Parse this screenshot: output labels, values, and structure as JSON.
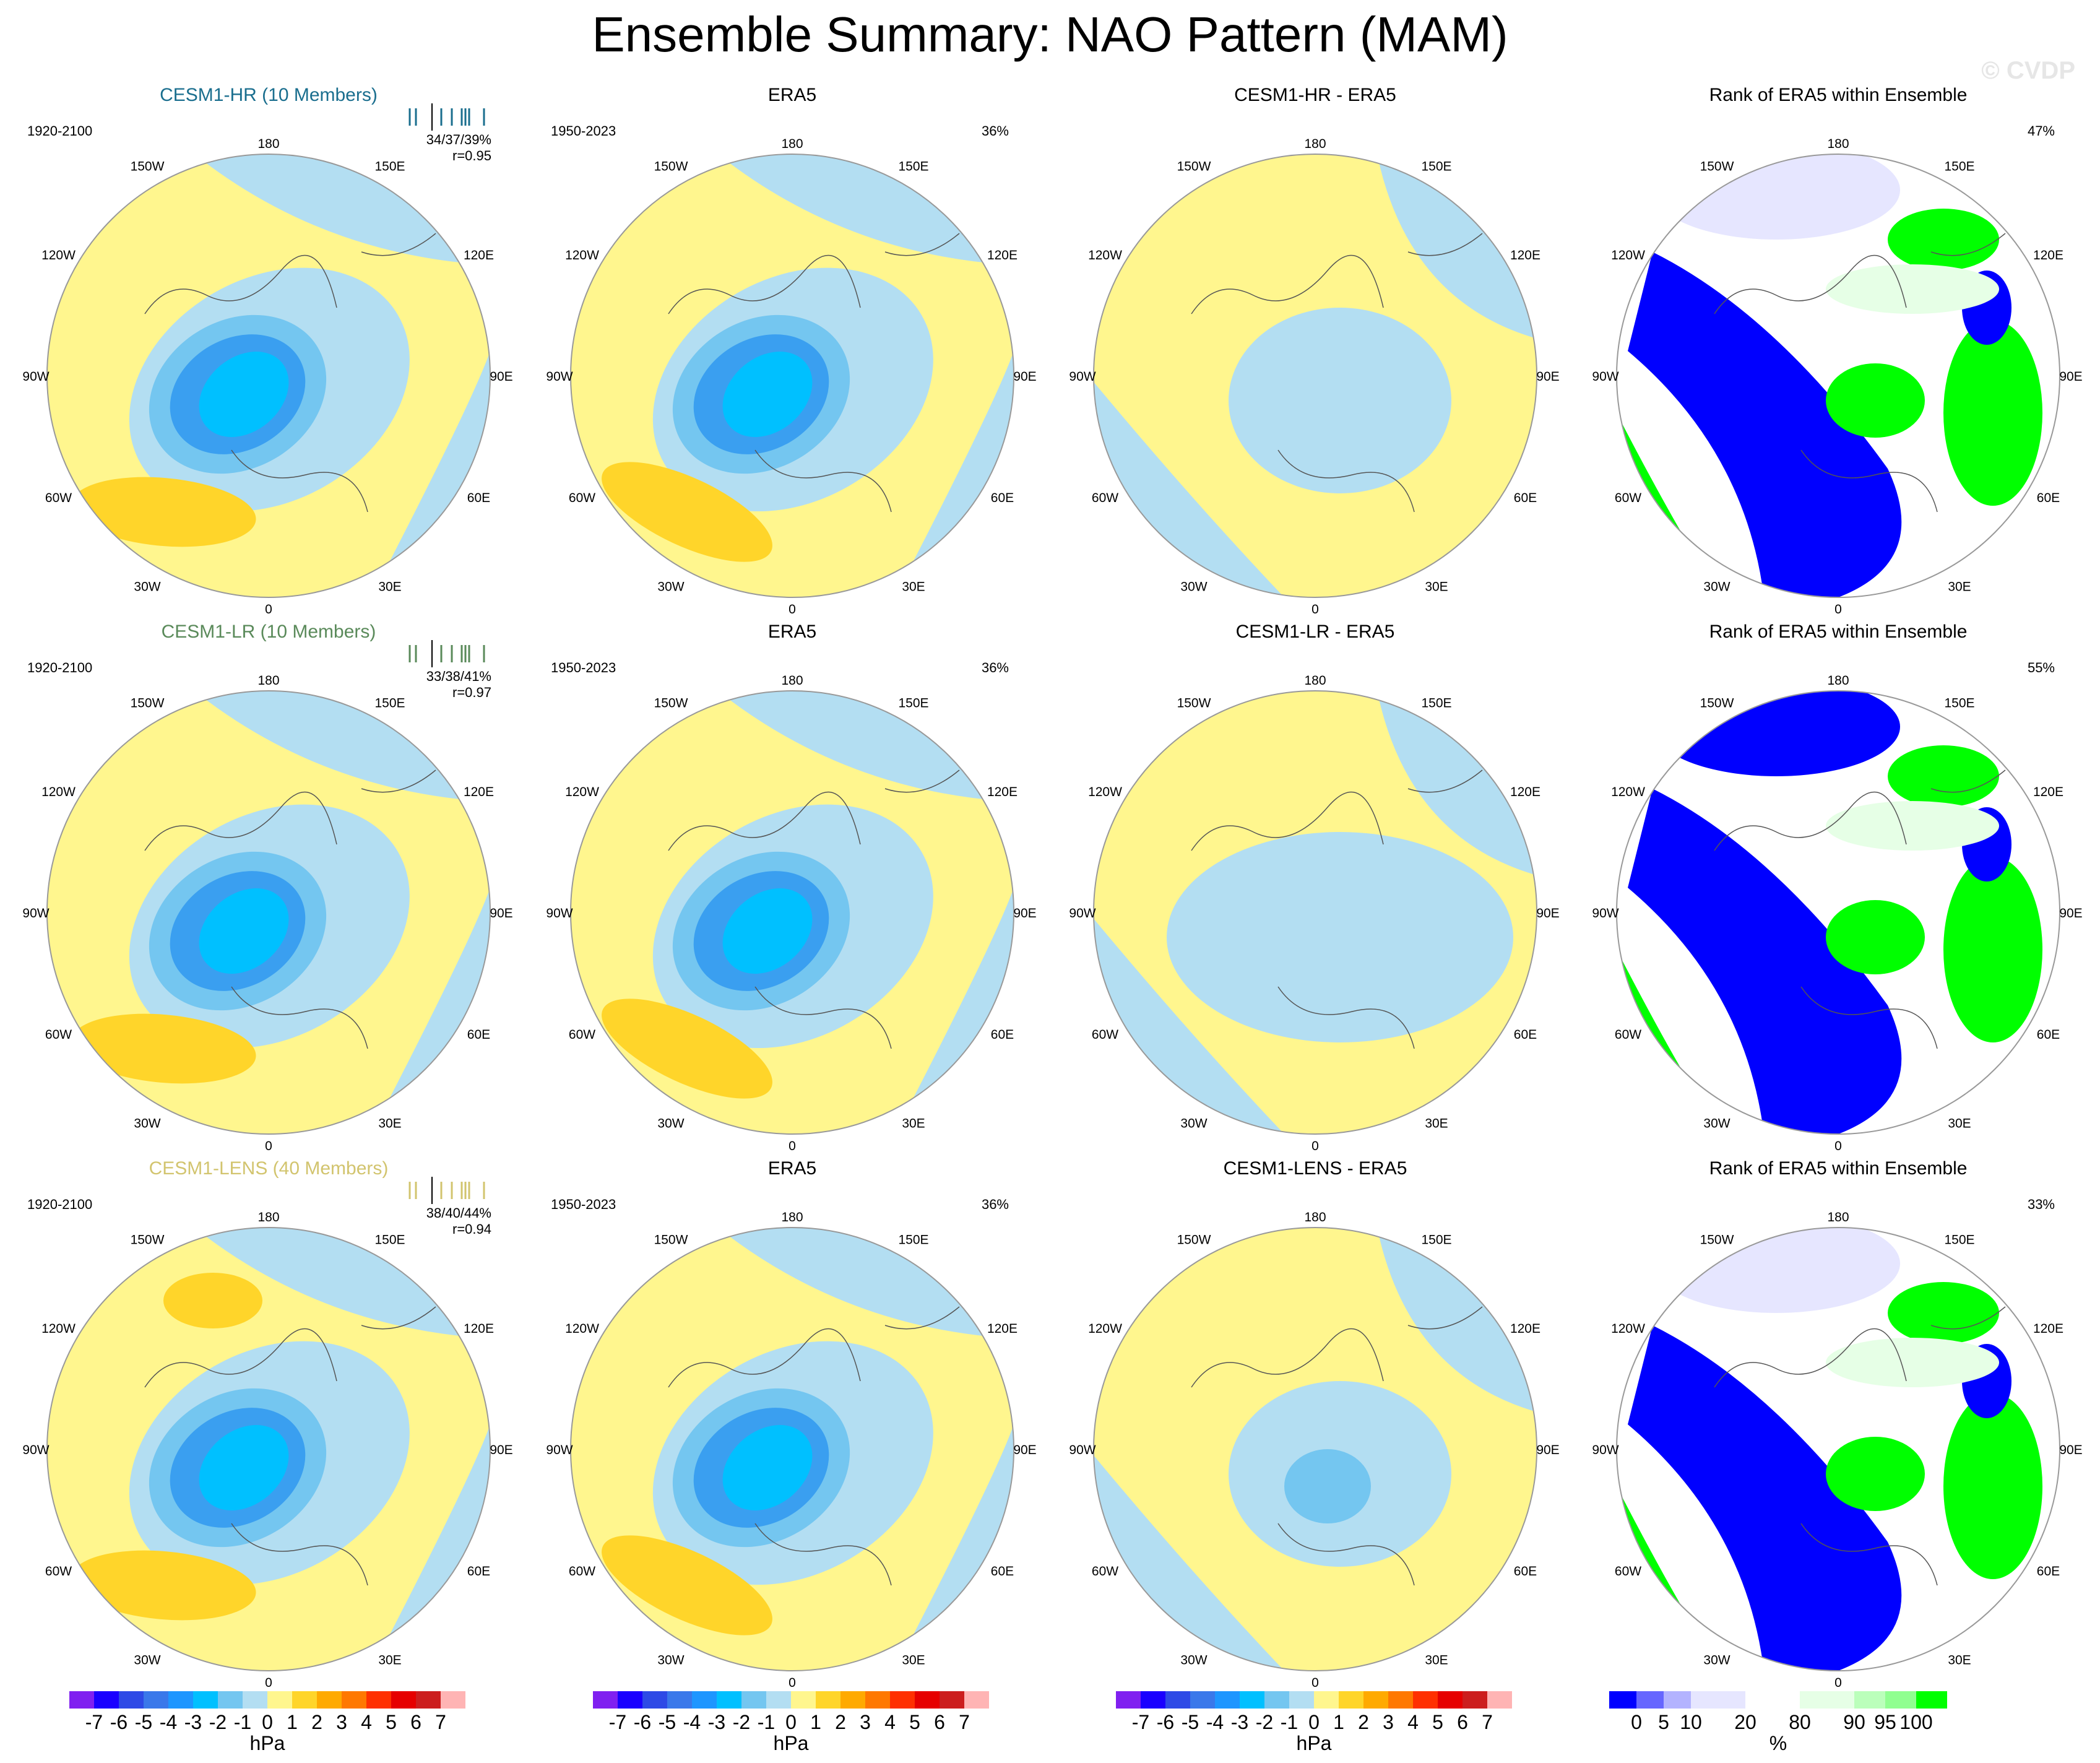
{
  "title": "Ensemble Summary: NAO Pattern (MAM)",
  "watermark": "© CVDP",
  "lon_labels": [
    "180",
    "150E",
    "120E",
    "90E",
    "60E",
    "30E",
    "0",
    "30W",
    "60W",
    "90W",
    "120W",
    "150W"
  ],
  "rows": [
    {
      "model": {
        "title": "CESM1-HR (10 Members)",
        "color": "#1a6e8e",
        "period": "1920-2100",
        "stats": "34/37/39%",
        "r": "r=0.95"
      },
      "obs": {
        "title": "ERA5",
        "period": "1950-2023",
        "pct": "36%"
      },
      "diff": {
        "title": "CESM1-HR - ERA5"
      },
      "rank": {
        "title": "Rank of ERA5 within Ensemble",
        "pct": "47%"
      }
    },
    {
      "model": {
        "title": "CESM1-LR (10 Members)",
        "color": "#5a8a5a",
        "period": "1920-2100",
        "stats": "33/38/41%",
        "r": "r=0.97"
      },
      "obs": {
        "title": "ERA5",
        "period": "1950-2023",
        "pct": "36%"
      },
      "diff": {
        "title": "CESM1-LR - ERA5"
      },
      "rank": {
        "title": "Rank of ERA5 within Ensemble",
        "pct": "55%"
      }
    },
    {
      "model": {
        "title": "CESM1-LENS (40 Members)",
        "color": "#d2c46e",
        "period": "1920-2100",
        "stats": "38/40/44%",
        "r": "r=0.94"
      },
      "obs": {
        "title": "ERA5",
        "period": "1950-2023",
        "pct": "36%"
      },
      "diff": {
        "title": "CESM1-LENS - ERA5"
      },
      "rank": {
        "title": "Rank of ERA5 within Ensemble",
        "pct": "33%"
      }
    }
  ],
  "chart_data": [
    {
      "type": "heatmap",
      "name": "hPa colorbar",
      "unit": "hPa",
      "levels": [
        "-7",
        "-6",
        "-5",
        "-4",
        "-3",
        "-2",
        "-1",
        "0",
        "1",
        "2",
        "3",
        "4",
        "5",
        "6",
        "7"
      ],
      "colors": [
        "#8020f0",
        "#1a00ff",
        "#2e4ae6",
        "#3a78ea",
        "#1e96ff",
        "#00c0ff",
        "#74c6f0",
        "#b3def2",
        "#fff68e",
        "#ffd52a",
        "#ffaa00",
        "#ff7800",
        "#ff3000",
        "#e60000",
        "#cc1e1e",
        "#ffb4b4"
      ]
    },
    {
      "type": "heatmap",
      "name": "rank colorbar",
      "unit": "%",
      "levels": [
        "0",
        "5",
        "10",
        "20",
        "80",
        "90",
        "95",
        "100"
      ],
      "colors": [
        "#0000ff",
        "#6666ff",
        "#b3b3ff",
        "#e6e6ff",
        "#ffffff",
        "#e6ffe6",
        "#bbffbb",
        "#90ff90",
        "#00ff00"
      ]
    }
  ]
}
